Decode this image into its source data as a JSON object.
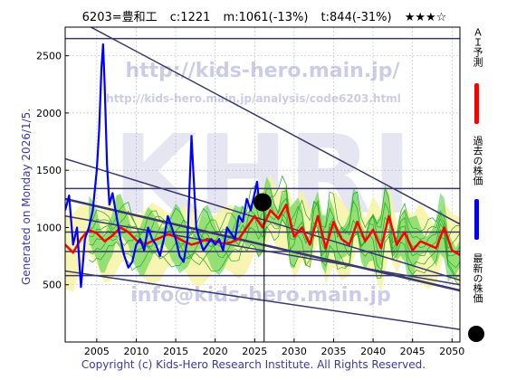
{
  "header": {
    "code_name": "6203=豊和工",
    "current": "c:1221",
    "m_value": "m:1061(-13%)",
    "t_value": "t:844(-31%)",
    "stars": "★★★☆"
  },
  "side_label": "Generated on Monday 2026/1/5.",
  "copyright": "Copyright (c) Kids-Hero Research Institute. All Rights Reserved.",
  "legend": {
    "ai_forecast": "ＡＩ予測",
    "past_price": "過去の株価",
    "latest_price": "最新の株価"
  },
  "watermark": {
    "url_main": "http://kids-hero.main.jp/",
    "url_analysis": "http://kids-hero.main.jp/analysis/code6203.html",
    "logo": "KHRI",
    "mail": "info@kids-hero.main.jp"
  },
  "colors": {
    "price": "#0000ff",
    "forecast": "#ff0000",
    "band_fill": "#44cc44",
    "band_line": "#22aa22",
    "yellow_fill": "#f6f2a0",
    "trend_line": "#3a3a6a",
    "text_blue": "#3a3aa0"
  },
  "chart_data": {
    "type": "line",
    "xlim": [
      2001,
      2051
    ],
    "ylim": [
      0,
      2750
    ],
    "xticks": [
      2005,
      2010,
      2015,
      2020,
      2025,
      2030,
      2035,
      2040,
      2045,
      2050
    ],
    "yticks": [
      500,
      1000,
      1500,
      2000,
      2500
    ],
    "grid": true,
    "latest_point": {
      "x": 2026.0,
      "y": 1221
    },
    "latest_vline_x": 2026.2,
    "hlines": [
      2650,
      1340,
      960,
      790,
      580
    ],
    "trend_lines": [
      {
        "x": [
          2001,
          2051
        ],
        "y": [
          2870,
          1030
        ]
      },
      {
        "x": [
          2001,
          2051
        ],
        "y": [
          1600,
          540
        ]
      },
      {
        "x": [
          2001,
          2051
        ],
        "y": [
          1250,
          450
        ]
      },
      {
        "x": [
          2001,
          2051
        ],
        "y": [
          1100,
          500
        ]
      },
      {
        "x": [
          2001,
          2051
        ],
        "y": [
          620,
          110
        ]
      }
    ],
    "series": [
      {
        "role": "past",
        "x": [
          2001,
          2001.5,
          2002,
          2002.5,
          2003,
          2003.5,
          2004,
          2004.5,
          2005,
          2005.3,
          2005.6,
          2005.8,
          2006,
          2006.3,
          2006.6,
          2007,
          2007.5,
          2008,
          2008.5,
          2009,
          2009.5,
          2010,
          2010.5,
          2011,
          2011.5,
          2012,
          2012.5,
          2013,
          2013.5,
          2014,
          2014.5,
          2015,
          2015.5,
          2016,
          2016.5,
          2017,
          2017.3,
          2017.6,
          2018,
          2018.5,
          2019,
          2019.5,
          2020,
          2020.5,
          2021,
          2021.5,
          2022,
          2022.5,
          2023,
          2023.5,
          2024,
          2024.5,
          2025,
          2025.3,
          2025.6,
          2026
        ],
        "y": [
          1150,
          1280,
          850,
          1000,
          480,
          900,
          1000,
          1150,
          1500,
          1850,
          2400,
          2600,
          2250,
          1550,
          1200,
          1300,
          1100,
          900,
          750,
          650,
          700,
          850,
          900,
          800,
          1000,
          900,
          850,
          750,
          900,
          1100,
          1000,
          900,
          750,
          700,
          900,
          1800,
          1400,
          1000,
          900,
          800,
          850,
          900,
          850,
          900,
          800,
          1000,
          950,
          900,
          1100,
          1050,
          1250,
          1150,
          1300,
          1400,
          1200,
          1221
        ]
      },
      {
        "role": "forecast",
        "x": [
          2001,
          2002,
          2003,
          2004,
          2005,
          2006,
          2007,
          2008,
          2009,
          2010,
          2011,
          2012,
          2013,
          2014,
          2015,
          2016,
          2017,
          2018,
          2019,
          2020,
          2021,
          2022,
          2023,
          2024,
          2025,
          2026,
          2027,
          2028,
          2029,
          2030,
          2031,
          2032,
          2033,
          2034,
          2035,
          2036,
          2037,
          2038,
          2039,
          2040,
          2041,
          2042,
          2043,
          2044,
          2045,
          2046,
          2047,
          2048,
          2049,
          2050,
          2051
        ],
        "y": [
          850,
          780,
          900,
          980,
          950,
          880,
          930,
          1000,
          960,
          890,
          850,
          880,
          910,
          940,
          920,
          880,
          850,
          870,
          900,
          880,
          860,
          870,
          900,
          1000,
          1100,
          1000,
          1150,
          1080,
          1200,
          920,
          1000,
          850,
          1100,
          820,
          1050,
          900,
          850,
          1050,
          880,
          980,
          820,
          1100,
          850,
          960,
          800,
          880,
          850,
          820,
          1000,
          800,
          760
        ]
      }
    ]
  }
}
